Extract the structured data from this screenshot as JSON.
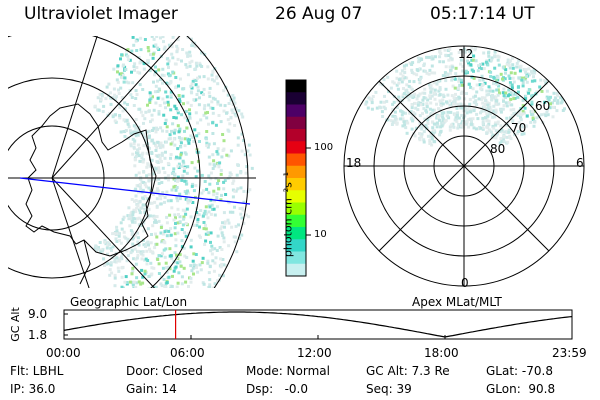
{
  "header": {
    "instrument": "Ultraviolet Imager",
    "date": "26 Aug 07",
    "time": "05:17:14 UT"
  },
  "geo_map": {
    "caption": "Geographic Lat/Lon"
  },
  "colorbar": {
    "unit_label": "photon cm⁻²s⁻¹",
    "ticks": [
      "100",
      "10"
    ],
    "colors": [
      "#000000",
      "#1a0033",
      "#4d0066",
      "#800040",
      "#b3002a",
      "#e60012",
      "#ff5500",
      "#ff9900",
      "#ffcc00",
      "#e6ff00",
      "#99ff00",
      "#33ff33",
      "#00e680",
      "#33d6c8",
      "#80e6e0",
      "#c8f0f0"
    ]
  },
  "polar_map": {
    "caption": "Apex MLat/MLT",
    "mlt_labels": {
      "top": "12",
      "bottom": "0",
      "left": "18",
      "right": "6"
    },
    "lat_labels": [
      "60",
      "70",
      "80"
    ]
  },
  "timeline": {
    "axis_title": "GC Alt",
    "y_ticks": [
      "9.0",
      "1.8"
    ],
    "x_ticks": [
      "00:00",
      "06:00",
      "12:00",
      "18:00",
      "23:59"
    ],
    "current_fraction": 0.2197
  },
  "metadata": {
    "flt": "Flt: LBHL",
    "door": "Door: Closed",
    "mode": "Mode: Normal",
    "gc_alt": "GC Alt: 7.3 Re",
    "glat": "GLat: -70.8",
    "ip": "IP: 36.0",
    "gain": "Gain: 14",
    "dsp": "Dsp:   -0.0",
    "seq": "Seq: 39",
    "glon": "GLon:  90.8"
  }
}
